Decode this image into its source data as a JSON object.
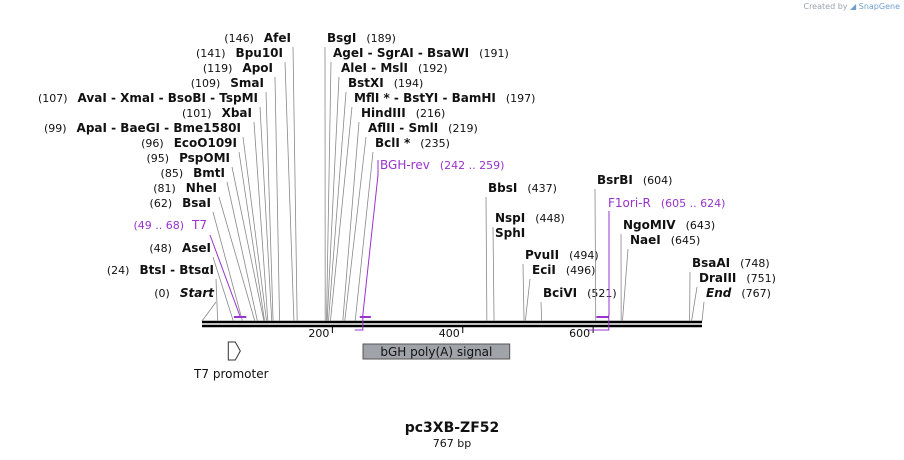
{
  "credit": {
    "prefix": "Created by",
    "brand": "SnapGene"
  },
  "plasmid": {
    "name": "pc3XB-ZF52",
    "length_label": "767 bp"
  },
  "colors": {
    "line": "#000000",
    "leader": "#888888",
    "primer": "#9933cc",
    "feature_fill": "#a0a4aa",
    "feature_stroke": "#555555"
  },
  "sites": [
    {
      "name": "Start",
      "pos": "(0)",
      "bp": 0,
      "italic": true
    },
    {
      "name": "BtsI  - BtsαI",
      "pos": "(24)",
      "bp": 24
    },
    {
      "name": "AseI",
      "pos": "(48)",
      "bp": 48
    },
    {
      "name": "BsaI",
      "pos": "(62)",
      "bp": 62
    },
    {
      "name": "NheI",
      "pos": "(81)",
      "bp": 81
    },
    {
      "name": "BmtI",
      "pos": "(85)",
      "bp": 85
    },
    {
      "name": "PspOMI",
      "pos": "(95)",
      "bp": 95
    },
    {
      "name": "EcoO109I",
      "pos": "(96)",
      "bp": 96
    },
    {
      "name": "ApaI  - BaeGI  - Bme1580I",
      "pos": "(99)",
      "bp": 99
    },
    {
      "name": "XbaI",
      "pos": "(101)",
      "bp": 101
    },
    {
      "name": "AvaI  - XmaI  - BsoBI  - TspMI",
      "pos": "(107)",
      "bp": 107
    },
    {
      "name": "SmaI",
      "pos": "(109)",
      "bp": 109
    },
    {
      "name": "ApoI",
      "pos": "(119)",
      "bp": 119
    },
    {
      "name": "Bpu10I",
      "pos": "(141)",
      "bp": 141
    },
    {
      "name": "AfeI",
      "pos": "(146)",
      "bp": 146
    },
    {
      "name": "BsgI",
      "pos": "(189)",
      "bp": 189
    },
    {
      "name": "AgeI  - SgrAI  - BsaWI",
      "pos": "(191)",
      "bp": 191
    },
    {
      "name": "AleI  - MslI",
      "pos": "(192)",
      "bp": 192
    },
    {
      "name": "BstXI",
      "pos": "(194)",
      "bp": 194
    },
    {
      "name": "MflI *  - BstYI  - BamHI",
      "pos": "(197)",
      "bp": 197
    },
    {
      "name": "HindIII",
      "pos": "(216)",
      "bp": 216
    },
    {
      "name": "AflII  - SmlI",
      "pos": "(219)",
      "bp": 219
    },
    {
      "name": "BclI *",
      "pos": "(235)",
      "bp": 235
    },
    {
      "name": "BbsI",
      "pos": "(437)",
      "bp": 437
    },
    {
      "name": "NspI",
      "pos": "(448)",
      "bp": 448
    },
    {
      "name": "SphI",
      "pos": "",
      "bp": 448
    },
    {
      "name": "PvuII",
      "pos": "(494)",
      "bp": 494
    },
    {
      "name": "EciI",
      "pos": "(496)",
      "bp": 496
    },
    {
      "name": "BciVI",
      "pos": "(521)",
      "bp": 521
    },
    {
      "name": "BsrBI",
      "pos": "(604)",
      "bp": 604
    },
    {
      "name": "NgoMIV",
      "pos": "(643)",
      "bp": 643
    },
    {
      "name": "NaeI",
      "pos": "(645)",
      "bp": 645
    },
    {
      "name": "BsaAI",
      "pos": "(748)",
      "bp": 748
    },
    {
      "name": "DraIII",
      "pos": "(751)",
      "bp": 751
    },
    {
      "name": "End",
      "pos": "(767)",
      "bp": 767,
      "italic": true
    }
  ],
  "primers": [
    {
      "name": "T7",
      "range": "(49 .. 68)",
      "start": 49,
      "end": 68
    },
    {
      "name": "BGH-rev",
      "range": "(242 .. 259)",
      "start": 242,
      "end": 259
    },
    {
      "name": "F1ori-R",
      "range": "(605 .. 624)",
      "start": 605,
      "end": 624
    }
  ],
  "features": [
    {
      "name": "T7 promoter",
      "start": 48,
      "end": 66,
      "type": "arrow"
    },
    {
      "name": "bGH poly(A) signal",
      "start": 247,
      "end": 472,
      "type": "box"
    }
  ],
  "ticks": [
    {
      "bp": 200,
      "label": "200"
    },
    {
      "bp": 400,
      "label": "400"
    },
    {
      "bp": 600,
      "label": "600"
    }
  ]
}
